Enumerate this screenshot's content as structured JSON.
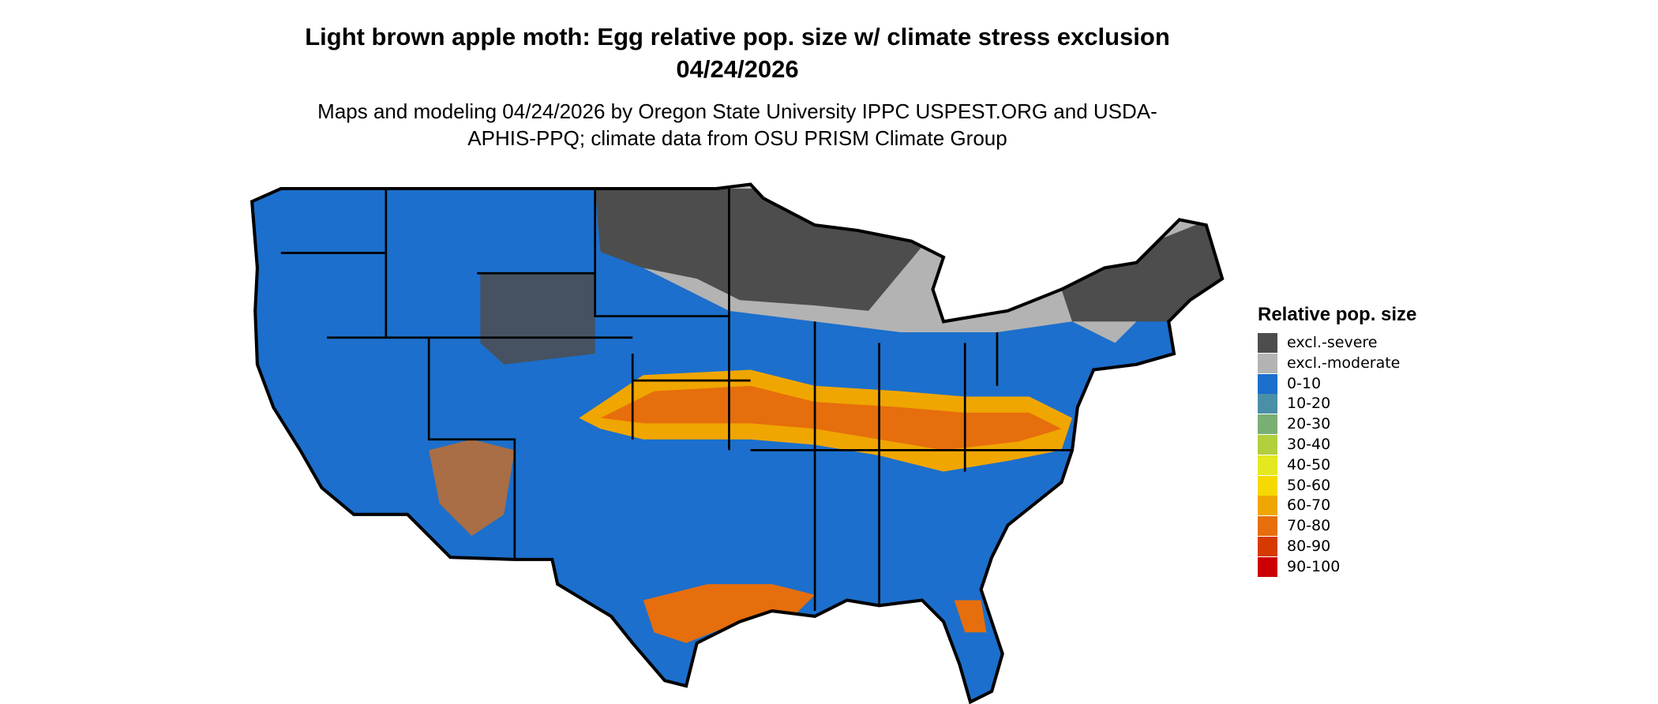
{
  "header": {
    "title": "Light brown apple moth: Egg relative pop. size w/ climate stress exclusion 04/24/2026",
    "subtitle": "Maps and modeling 04/24/2026 by Oregon State University IPPC USPEST.ORG and USDA-APHIS-PPQ; climate data from OSU PRISM Climate Group"
  },
  "legend": {
    "title": "Relative pop. size",
    "items": [
      {
        "label": "excl.-severe",
        "color": "#4d4d4d"
      },
      {
        "label": "excl.-moderate",
        "color": "#b3b3b3"
      },
      {
        "label": "0-10",
        "color": "#1c6fcc"
      },
      {
        "label": "10-20",
        "color": "#4a8fa8"
      },
      {
        "label": "20-30",
        "color": "#7aaf74"
      },
      {
        "label": "30-40",
        "color": "#b2cf3e"
      },
      {
        "label": "40-50",
        "color": "#e4e81e"
      },
      {
        "label": "50-60",
        "color": "#f6d900"
      },
      {
        "label": "60-70",
        "color": "#f0a600"
      },
      {
        "label": "70-80",
        "color": "#e66e0c"
      },
      {
        "label": "80-90",
        "color": "#d63a00"
      },
      {
        "label": "90-100",
        "color": "#cc0000"
      }
    ]
  }
}
